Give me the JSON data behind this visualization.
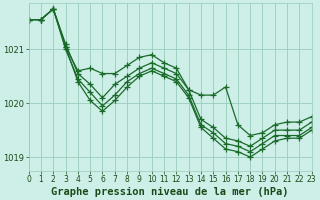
{
  "title": "Graphe pression niveau de la mer (hPa)",
  "background_color": "#ceeee8",
  "grid_color": "#99ccbb",
  "line_color": "#1a6b2a",
  "text_color": "#1a4a1a",
  "xlim": [
    0,
    23
  ],
  "ylim": [
    1018.75,
    1021.85
  ],
  "yticks": [
    1019,
    1020,
    1021
  ],
  "xticks": [
    0,
    1,
    2,
    3,
    4,
    5,
    6,
    7,
    8,
    9,
    10,
    11,
    12,
    13,
    14,
    15,
    16,
    17,
    18,
    19,
    20,
    21,
    22,
    23
  ],
  "series": [
    {
      "x": [
        0,
        1,
        2,
        3,
        4,
        5,
        6,
        7,
        8,
        9,
        10,
        11,
        12,
        13,
        14,
        15,
        16,
        17,
        18,
        19,
        20,
        21,
        22,
        23
      ],
      "y": [
        1021.55,
        1021.55,
        1021.75,
        1021.05,
        1020.6,
        1020.65,
        1020.55,
        1020.55,
        1020.7,
        1020.85,
        1020.9,
        1020.75,
        1020.65,
        1020.25,
        1020.15,
        1020.15,
        1020.3,
        1019.6,
        1019.4,
        1019.45,
        1019.6,
        1019.65,
        1019.65,
        1019.75
      ],
      "has_markers": true
    },
    {
      "x": [
        0,
        1,
        2,
        3,
        4,
        5,
        6,
        7,
        8,
        9,
        10,
        11,
        12,
        13,
        14,
        15,
        16,
        17,
        18,
        19,
        20,
        21,
        22,
        23
      ],
      "y": [
        1021.55,
        1021.55,
        1021.75,
        1021.1,
        1020.55,
        1020.35,
        1020.1,
        1020.35,
        1020.5,
        1020.65,
        1020.75,
        1020.65,
        1020.55,
        1020.25,
        1019.7,
        1019.55,
        1019.35,
        1019.3,
        1019.2,
        1019.35,
        1019.5,
        1019.5,
        1019.5,
        1019.65
      ],
      "has_markers": true
    },
    {
      "x": [
        0,
        1,
        2,
        3,
        4,
        5,
        6,
        7,
        8,
        9,
        10,
        11,
        12,
        13,
        14,
        15,
        16,
        17,
        18,
        19,
        20,
        21,
        22,
        23
      ],
      "y": [
        1021.55,
        1021.55,
        1021.75,
        1021.0,
        1020.45,
        1020.2,
        1019.95,
        1020.15,
        1020.4,
        1020.55,
        1020.65,
        1020.55,
        1020.45,
        1020.15,
        1019.6,
        1019.45,
        1019.25,
        1019.2,
        1019.1,
        1019.25,
        1019.4,
        1019.4,
        1019.4,
        1019.55
      ],
      "has_markers": true
    },
    {
      "x": [
        0,
        1,
        2,
        3,
        4,
        5,
        6,
        7,
        8,
        9,
        10,
        11,
        12,
        13,
        14,
        15,
        16,
        17,
        18,
        19,
        20,
        21,
        22,
        23
      ],
      "y": [
        1021.55,
        1021.55,
        1021.75,
        1021.05,
        1020.4,
        1020.05,
        1019.85,
        1020.05,
        1020.3,
        1020.5,
        1020.6,
        1020.5,
        1020.4,
        1020.1,
        1019.55,
        1019.35,
        1019.15,
        1019.1,
        1019.0,
        1019.15,
        1019.3,
        1019.35,
        1019.35,
        1019.5
      ],
      "has_markers": true
    }
  ],
  "marker": "+",
  "markersize": 4,
  "linewidth": 0.9,
  "title_fontsize": 7.5,
  "tick_fontsize": 6
}
